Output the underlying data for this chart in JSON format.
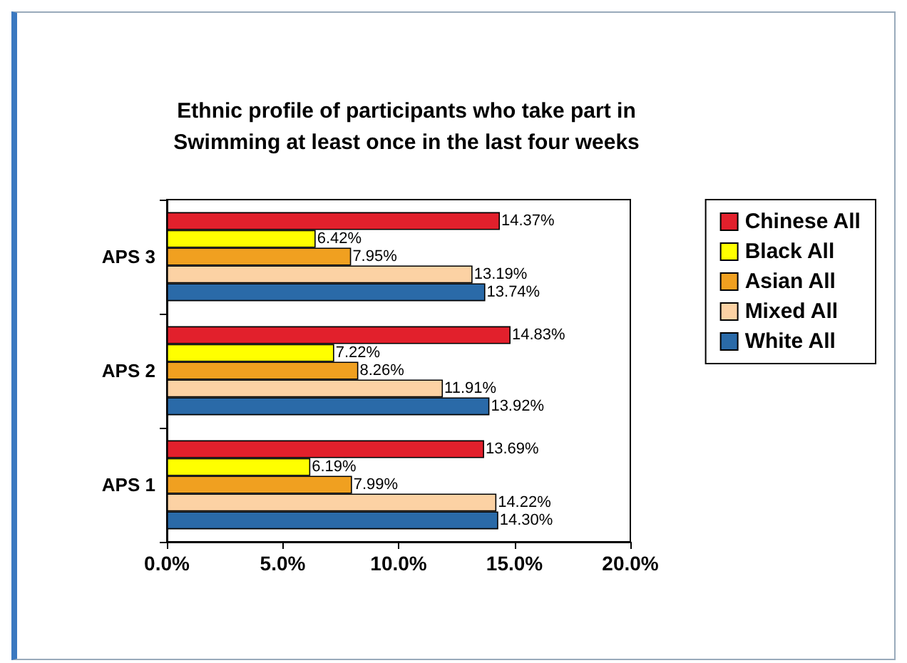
{
  "chart_data": {
    "type": "bar",
    "orientation": "horizontal",
    "title": "Ethnic profile of participants who take part in\nSwimming at least once in the last four weeks",
    "categories": [
      "APS 3",
      "APS 2",
      "APS 1"
    ],
    "series": [
      {
        "name": "Chinese All",
        "color": "#e2202c",
        "values": [
          14.37,
          14.83,
          13.69
        ],
        "value_labels": [
          "14.37%",
          "14.83%",
          "13.69%"
        ]
      },
      {
        "name": "Black All",
        "color": "#ffff00",
        "values": [
          6.42,
          7.22,
          6.19
        ],
        "value_labels": [
          "6.42%",
          "7.22%",
          "6.19%"
        ]
      },
      {
        "name": "Asian All",
        "color": "#f0a020",
        "values": [
          7.95,
          8.26,
          7.99
        ],
        "value_labels": [
          "7.95%",
          "8.26%",
          "7.99%"
        ]
      },
      {
        "name": "Mixed All",
        "color": "#fcd2a4",
        "values": [
          13.19,
          11.91,
          14.22
        ],
        "value_labels": [
          "13.19%",
          "11.91%",
          "14.22%"
        ]
      },
      {
        "name": "White All",
        "color": "#2a6aa8",
        "values": [
          13.74,
          13.92,
          14.3
        ],
        "value_labels": [
          "13.74%",
          "13.92%",
          "14.30%"
        ]
      }
    ],
    "xlim": [
      0,
      20
    ],
    "xticks": [
      {
        "value": 0,
        "label": "0.0%"
      },
      {
        "value": 5,
        "label": "5.0%"
      },
      {
        "value": 10,
        "label": "10.0%"
      },
      {
        "value": 15,
        "label": "15.0%"
      },
      {
        "value": 20,
        "label": "20.0%"
      }
    ],
    "grid": false,
    "legend": "right"
  }
}
